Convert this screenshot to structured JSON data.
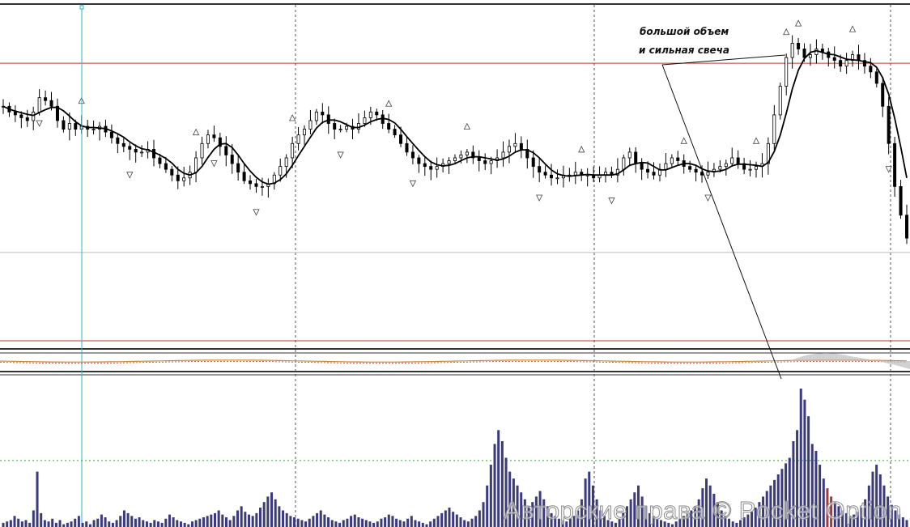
{
  "chart_data": [
    {
      "type": "candlestick",
      "title": "",
      "xlabel": "",
      "ylabel": "",
      "ylim": [
        0,
        100
      ],
      "grid": "vertical-dashed",
      "colors": {
        "candle": "#000000",
        "ma": "#000000",
        "resistance": "#c0392b",
        "marker": "#2bb5c9",
        "fractal": "#444444"
      },
      "horizontal_levels": [
        {
          "kind": "resistance",
          "value": 83,
          "color": "#c0392b"
        },
        {
          "kind": "support-gray",
          "value": 17,
          "color": "#bbbbbb"
        },
        {
          "kind": "bottom-red",
          "value": 0,
          "color": "#c0392b"
        }
      ],
      "vertical_markers": [
        13,
        237
      ],
      "close_prices": [
        68,
        66,
        65,
        64,
        63,
        66,
        71,
        70,
        68,
        63,
        60,
        62,
        60,
        61,
        60,
        60,
        61,
        59,
        57,
        55,
        54,
        53,
        52,
        52,
        53,
        50,
        48,
        46,
        44,
        42,
        43,
        45,
        50,
        55,
        58,
        57,
        54,
        51,
        48,
        45,
        42,
        41,
        40,
        40,
        41,
        44,
        47,
        50,
        55,
        58,
        60,
        63,
        66,
        65,
        62,
        60,
        60,
        61,
        60,
        62,
        64,
        66,
        65,
        62,
        60,
        58,
        55,
        52,
        50,
        48,
        47,
        46,
        47,
        48,
        49,
        50,
        51,
        52,
        50,
        49,
        48,
        49,
        50,
        52,
        54,
        55,
        53,
        50,
        47,
        45,
        44,
        43,
        43,
        44,
        44,
        45,
        44,
        44,
        43,
        44,
        45,
        44,
        46,
        50,
        52,
        48,
        46,
        45,
        44,
        46,
        48,
        50,
        49,
        47,
        46,
        45,
        44,
        45,
        46,
        47,
        48,
        50,
        48,
        46,
        46,
        47,
        48,
        55,
        65,
        75,
        85,
        90,
        88,
        85,
        86,
        88,
        87,
        85,
        84,
        82,
        84,
        86,
        84,
        82,
        80,
        76,
        68,
        55,
        40,
        30,
        22
      ],
      "ma_period": 5,
      "fractals_up": [
        13,
        32,
        48,
        64,
        77,
        96,
        113,
        125,
        130,
        132,
        141
      ],
      "fractals_down": [
        6,
        21,
        35,
        42,
        56,
        68,
        89,
        101,
        117,
        147
      ],
      "volume_panel": {
        "values": [
          3,
          4,
          5,
          8,
          6,
          4,
          5,
          3,
          12,
          40,
          10,
          5,
          4,
          6,
          3,
          5,
          2,
          3,
          4,
          6,
          8,
          3,
          4,
          2,
          5,
          6,
          9,
          7,
          4,
          3,
          5,
          8,
          12,
          10,
          8,
          6,
          7,
          5,
          4,
          3,
          5,
          4,
          3,
          6,
          9,
          7,
          5,
          4,
          3,
          2,
          4,
          5,
          6,
          7,
          8,
          9,
          10,
          12,
          9,
          7,
          5,
          8,
          12,
          15,
          11,
          9,
          8,
          10,
          14,
          18,
          22,
          25,
          20,
          15,
          12,
          10,
          8,
          7,
          6,
          5,
          4,
          6,
          8,
          10,
          12,
          9,
          7,
          5,
          4,
          3,
          5,
          6,
          8,
          9,
          7,
          6,
          5,
          4,
          3,
          4,
          6,
          7,
          9,
          8,
          6,
          5,
          4,
          6,
          8,
          5,
          4,
          3,
          2,
          4,
          6,
          8,
          10,
          12,
          14,
          11,
          9,
          7,
          5,
          4,
          6,
          8,
          12,
          18,
          30,
          45,
          60,
          70,
          62,
          50,
          40,
          35,
          30,
          25,
          20,
          15,
          18,
          22,
          26,
          20,
          15,
          10,
          8,
          6,
          5,
          4,
          6,
          8,
          12,
          20,
          35,
          40,
          30,
          20,
          12,
          8,
          5,
          4,
          3,
          6,
          10,
          15,
          20,
          25,
          30,
          22,
          15,
          10,
          8,
          6,
          5,
          4,
          3,
          2,
          4,
          6,
          8,
          10,
          12,
          15,
          20,
          28,
          35,
          30,
          24,
          18,
          12,
          8,
          6,
          4,
          3,
          5,
          7,
          9,
          11,
          14,
          18,
          22,
          26,
          30,
          34,
          38,
          42,
          46,
          50,
          62,
          70,
          100,
          92,
          80,
          60,
          55,
          45,
          35,
          28,
          22,
          18,
          15,
          12,
          10,
          8,
          9,
          11,
          14,
          20,
          30,
          40,
          45,
          38,
          30,
          22,
          16,
          12,
          9,
          7,
          5
        ],
        "highlight_indices": [
          218,
          219
        ],
        "highlight_color": "#a33a3a",
        "bar_color": "#3b3a7a",
        "reference_level": 48
      }
    }
  ],
  "annotation": {
    "line1": "большой объем",
    "line2": "и сильная  свеча"
  },
  "watermark": "Авторские права © Pocket Option"
}
